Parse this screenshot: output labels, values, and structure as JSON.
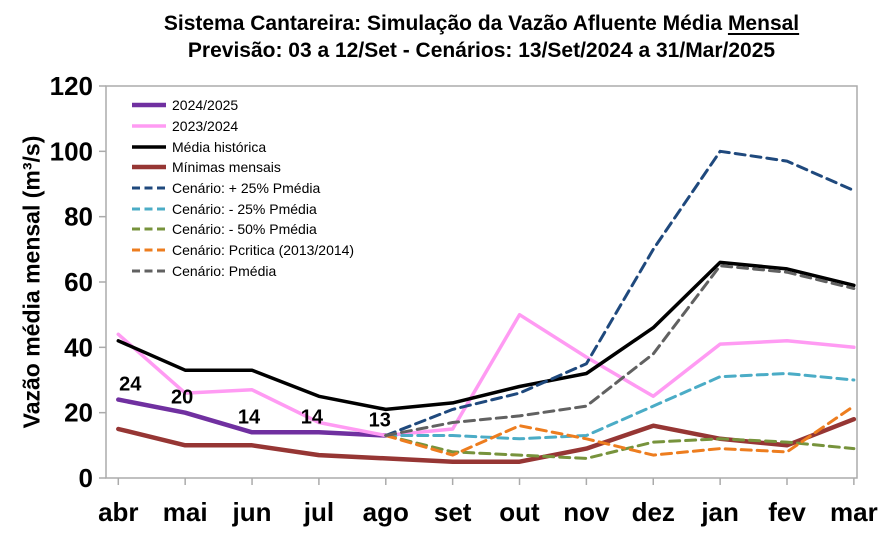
{
  "header": {
    "title_main": "Sistema Cantareira: Simulação da Vazão Afluente Média ",
    "title_underlined": "Mensal",
    "subtitle": "Previsão: 03 a 12/Set - Cenários: 13/Set/2024 a 31/Mar/2025"
  },
  "chart_data": {
    "type": "line",
    "title": "Sistema Cantareira: Simulação da Vazão Afluente Média Mensal",
    "subtitle": "Previsão: 03 a 12/Set - Cenários: 13/Set/2024 a 31/Mar/2025",
    "xlabel": "",
    "ylabel": "Vazão média mensal (m³/s)",
    "ylim": [
      0,
      120
    ],
    "yticks": [
      0,
      20,
      40,
      60,
      80,
      100,
      120
    ],
    "grid": false,
    "legend_position": "top-left-inside",
    "categories": [
      "abr",
      "mai",
      "jun",
      "jul",
      "ago",
      "set",
      "out",
      "nov",
      "dez",
      "jan",
      "fev",
      "mar"
    ],
    "axis_color": "#ABABAB",
    "series": [
      {
        "name": "2024/2025",
        "color": "#7030A0",
        "dashed": false,
        "width": 4.5,
        "values": [
          24,
          20,
          14,
          14,
          13,
          null,
          null,
          null,
          null,
          null,
          null,
          null
        ]
      },
      {
        "name": "2023/2024",
        "color": "#FF9BF3",
        "dashed": false,
        "width": 3.5,
        "values": [
          44,
          26,
          27,
          17,
          13,
          15,
          50,
          37,
          25,
          41,
          42,
          40
        ]
      },
      {
        "name": "Média histórica",
        "color": "#000000",
        "dashed": false,
        "width": 3.5,
        "values": [
          42,
          33,
          33,
          25,
          21,
          23,
          28,
          32,
          46,
          66,
          64,
          59
        ]
      },
      {
        "name": "Mínimas mensais",
        "color": "#963634",
        "dashed": false,
        "width": 4.5,
        "values": [
          15,
          10,
          10,
          7,
          6,
          5,
          5,
          9,
          16,
          12,
          10,
          18
        ]
      },
      {
        "name": "Cenário: + 25% Pmédia",
        "color": "#1F497D",
        "dashed": true,
        "width": 3,
        "values": [
          null,
          null,
          null,
          null,
          13,
          21,
          26,
          35,
          70,
          100,
          97,
          88
        ]
      },
      {
        "name": "Cenário: - 25% Pmédia",
        "color": "#4BACC6",
        "dashed": true,
        "width": 3,
        "values": [
          null,
          null,
          null,
          null,
          13,
          13,
          12,
          13,
          22,
          31,
          32,
          30
        ]
      },
      {
        "name": "Cenário: - 50% Pmédia",
        "color": "#77933C",
        "dashed": true,
        "width": 3,
        "values": [
          null,
          null,
          null,
          null,
          13,
          8,
          7,
          6,
          11,
          12,
          11,
          9
        ]
      },
      {
        "name": "Cenário: Pcritica (2013/2014)",
        "color": "#ED7D1F",
        "dashed": true,
        "width": 3,
        "values": [
          null,
          null,
          null,
          null,
          13,
          7,
          16,
          12,
          7,
          9,
          8,
          22
        ]
      },
      {
        "name": "Cenário: Pmédia",
        "color": "#616161",
        "dashed": true,
        "width": 3,
        "values": [
          null,
          null,
          null,
          null,
          13,
          17,
          19,
          22,
          38,
          65,
          63,
          58
        ]
      }
    ],
    "point_labels": [
      {
        "text": "24",
        "series": "2024/2025",
        "month_index": 0,
        "value": 24
      },
      {
        "text": "20",
        "series": "2024/2025",
        "month_index": 1,
        "value": 20
      },
      {
        "text": "14",
        "series": "2024/2025",
        "month_index": 2,
        "value": 14
      },
      {
        "text": "14",
        "series": "2024/2025",
        "month_index": 3,
        "value": 14
      },
      {
        "text": "13",
        "series": "2024/2025",
        "month_index": 4,
        "value": 13
      }
    ]
  }
}
